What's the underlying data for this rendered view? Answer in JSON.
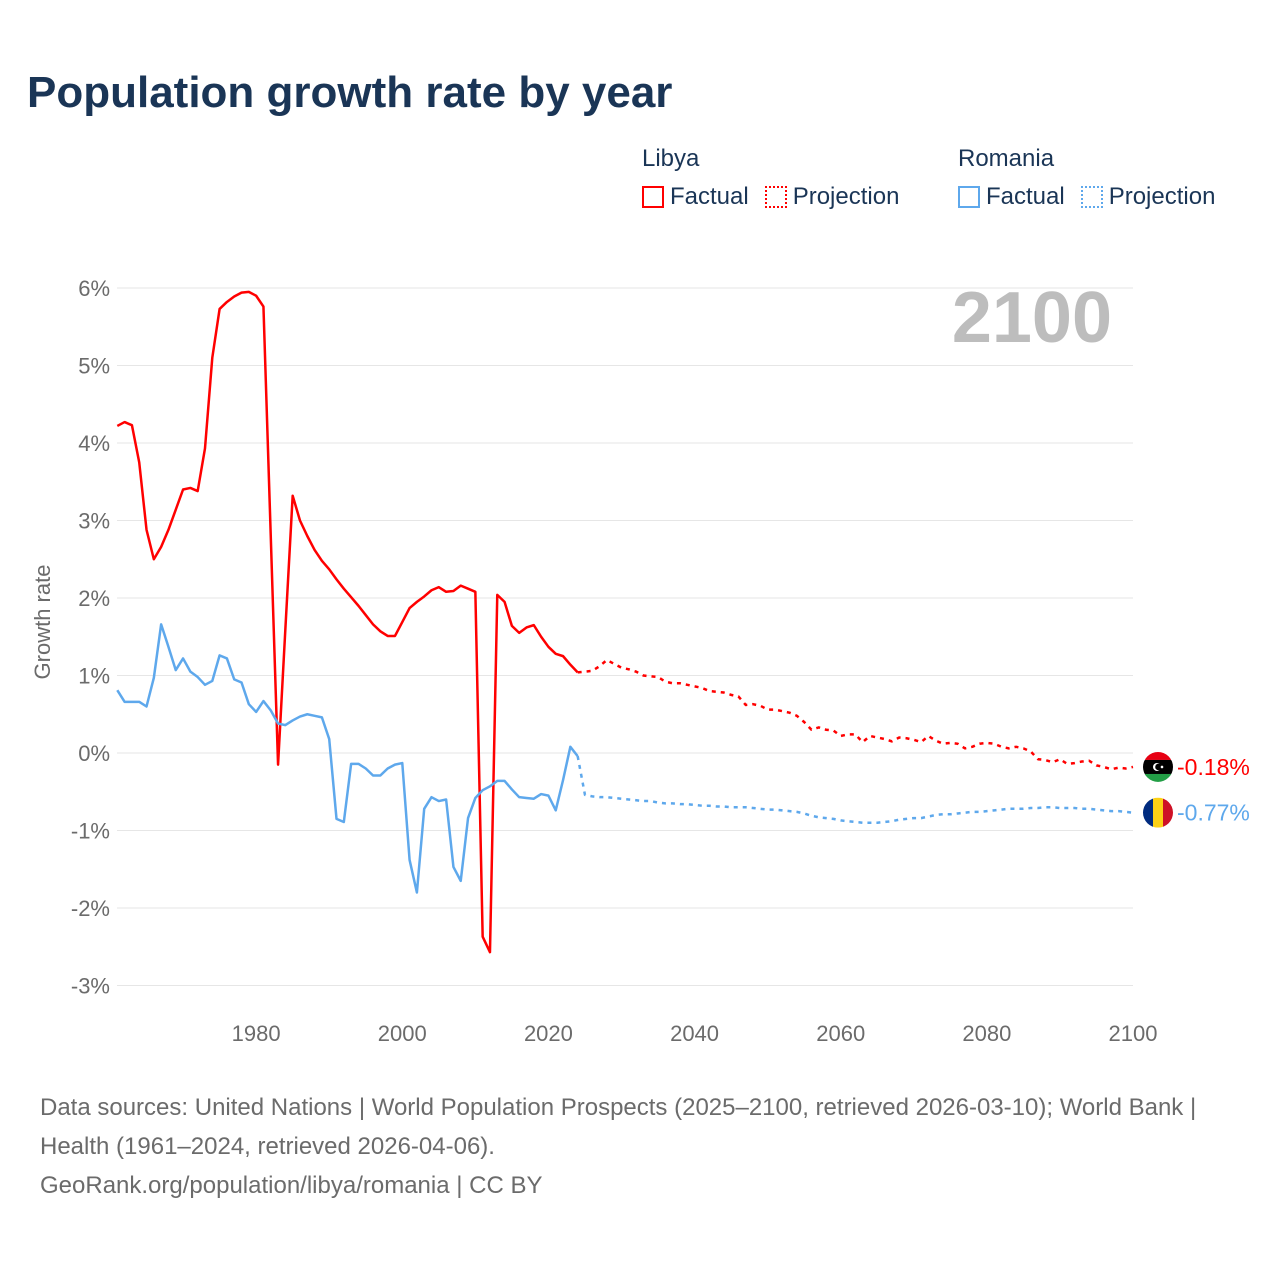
{
  "title": "Population growth rate by year",
  "legend": {
    "libya": {
      "name": "Libya",
      "factual": "Factual",
      "projection": "Projection"
    },
    "romania": {
      "name": "Romania",
      "factual": "Factual",
      "projection": "Projection"
    }
  },
  "footer": {
    "sources": "Data sources: United Nations | World Population Prospects (2025–2100, retrieved 2026-03-10); World Bank | Health (1961–2024, retrieved 2026-04-06).",
    "link": "GeoRank.org/population/libya/romania | CC BY"
  },
  "chart_data": {
    "type": "line",
    "title": "Population growth rate by year",
    "xlabel": "",
    "ylabel": "Growth rate",
    "xlim": [
      1961,
      2100
    ],
    "ylim": [
      -3.4,
      6.2
    ],
    "yticks": [
      6,
      5,
      4,
      3,
      2,
      1,
      0,
      -1,
      -2,
      -3
    ],
    "ytick_labels": [
      "6%",
      "5%",
      "4%",
      "3%",
      "2%",
      "1%",
      "0%",
      "-1%",
      "-2%",
      "-3%"
    ],
    "xticks": [
      1980,
      2000,
      2020,
      2040,
      2060,
      2080,
      2100
    ],
    "xtick_labels": [
      "1980",
      "2000",
      "2020",
      "2040",
      "2060",
      "2080",
      "2100"
    ],
    "year_watermark": "2100",
    "grid": true,
    "legend_position": "top-right",
    "series": [
      {
        "name": "Libya Factual",
        "country": "libya",
        "style": "solid",
        "color": "#ff0000",
        "start_year": 1961,
        "values": [
          4.22,
          4.27,
          4.23,
          3.75,
          2.88,
          2.5,
          2.66,
          2.88,
          3.14,
          3.4,
          3.42,
          3.38,
          3.93,
          5.1,
          5.73,
          5.82,
          5.89,
          5.94,
          5.95,
          5.9,
          5.76,
          2.8,
          -0.15,
          1.6,
          3.32,
          3.0,
          2.8,
          2.62,
          2.48,
          2.37,
          2.24,
          2.12,
          2.01,
          1.9,
          1.78,
          1.66,
          1.57,
          1.51,
          1.51,
          1.69,
          1.87,
          1.95,
          2.02,
          2.1,
          2.14,
          2.08,
          2.09,
          2.16,
          2.12,
          2.08,
          -2.37,
          -2.57,
          2.04,
          1.95,
          1.64,
          1.55,
          1.62,
          1.65,
          1.5,
          1.37,
          1.28,
          1.25,
          1.14,
          1.04
        ]
      },
      {
        "name": "Libya Projection",
        "country": "libya",
        "style": "dotted",
        "color": "#ff0000",
        "start_year": 2025,
        "values": [
          1.05,
          1.06,
          1.12,
          1.2,
          1.15,
          1.1,
          1.08,
          1.05,
          1.0,
          0.99,
          0.98,
          0.92,
          0.9,
          0.9,
          0.88,
          0.86,
          0.84,
          0.8,
          0.79,
          0.78,
          0.75,
          0.73,
          0.62,
          0.63,
          0.61,
          0.56,
          0.56,
          0.54,
          0.52,
          0.48,
          0.4,
          0.3,
          0.33,
          0.3,
          0.29,
          0.22,
          0.24,
          0.24,
          0.14,
          0.22,
          0.2,
          0.18,
          0.15,
          0.2,
          0.19,
          0.17,
          0.14,
          0.22,
          0.16,
          0.12,
          0.13,
          0.12,
          0.06,
          0.08,
          0.12,
          0.13,
          0.12,
          0.08,
          0.06,
          0.08,
          0.06,
          0.02,
          -0.08,
          -0.09,
          -0.12,
          -0.08,
          -0.14,
          -0.13,
          -0.11,
          -0.1,
          -0.16,
          -0.18,
          -0.21,
          -0.19,
          -0.2,
          -0.18
        ]
      },
      {
        "name": "Romania Factual",
        "country": "romania",
        "style": "solid",
        "color": "#5ea8ec",
        "start_year": 1961,
        "values": [
          0.81,
          0.66,
          0.66,
          0.66,
          0.6,
          0.97,
          1.66,
          1.37,
          1.07,
          1.22,
          1.05,
          0.98,
          0.88,
          0.93,
          1.26,
          1.22,
          0.95,
          0.91,
          0.63,
          0.53,
          0.67,
          0.55,
          0.38,
          0.36,
          0.42,
          0.47,
          0.5,
          0.48,
          0.46,
          0.18,
          -0.85,
          -0.89,
          -0.14,
          -0.14,
          -0.2,
          -0.29,
          -0.29,
          -0.2,
          -0.15,
          -0.13,
          -1.38,
          -1.8,
          -0.72,
          -0.57,
          -0.62,
          -0.6,
          -1.47,
          -1.65,
          -0.84,
          -0.58,
          -0.48,
          -0.43,
          -0.36,
          -0.36,
          -0.47,
          -0.57,
          -0.58,
          -0.59,
          -0.53,
          -0.55,
          -0.74,
          -0.35,
          0.08,
          -0.04
        ]
      },
      {
        "name": "Romania Projection",
        "country": "romania",
        "style": "dotted",
        "color": "#5ea8ec",
        "start_year": 2025,
        "values": [
          -0.54,
          -0.56,
          -0.57,
          -0.57,
          -0.58,
          -0.59,
          -0.6,
          -0.61,
          -0.62,
          -0.62,
          -0.64,
          -0.65,
          -0.65,
          -0.66,
          -0.66,
          -0.67,
          -0.68,
          -0.68,
          -0.69,
          -0.69,
          -0.7,
          -0.7,
          -0.7,
          -0.71,
          -0.72,
          -0.73,
          -0.73,
          -0.74,
          -0.75,
          -0.76,
          -0.78,
          -0.81,
          -0.83,
          -0.84,
          -0.85,
          -0.87,
          -0.88,
          -0.89,
          -0.9,
          -0.9,
          -0.9,
          -0.89,
          -0.88,
          -0.86,
          -0.85,
          -0.84,
          -0.84,
          -0.82,
          -0.8,
          -0.79,
          -0.79,
          -0.78,
          -0.77,
          -0.76,
          -0.76,
          -0.75,
          -0.74,
          -0.73,
          -0.72,
          -0.72,
          -0.72,
          -0.71,
          -0.71,
          -0.7,
          -0.7,
          -0.71,
          -0.71,
          -0.71,
          -0.72,
          -0.72,
          -0.73,
          -0.74,
          -0.75,
          -0.75,
          -0.76,
          -0.77
        ]
      }
    ],
    "end_labels": [
      {
        "country": "libya",
        "text": "-0.18%",
        "value": -0.18,
        "color": "#ff0000"
      },
      {
        "country": "romania",
        "text": "-0.77%",
        "value": -0.77,
        "color": "#5ea8ec"
      }
    ]
  }
}
